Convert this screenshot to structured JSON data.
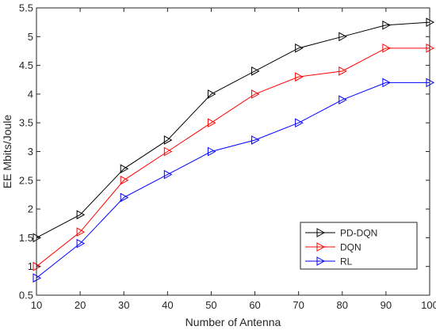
{
  "chart_data": {
    "type": "line",
    "title": "",
    "xlabel": "Number of Antenna",
    "ylabel": "EE Mbits/Joule",
    "x": [
      10,
      20,
      30,
      40,
      50,
      60,
      70,
      80,
      90,
      100
    ],
    "xlim": [
      10,
      100
    ],
    "ylim": [
      0.5,
      5.5
    ],
    "xticks": [
      "10",
      "20",
      "30",
      "40",
      "50",
      "60",
      "70",
      "80",
      "90",
      "100"
    ],
    "yticks": [
      "0.5",
      "1",
      "1.5",
      "2",
      "2.5",
      "3",
      "3.5",
      "4",
      "4.5",
      "5",
      "5.5"
    ],
    "grid": false,
    "legend_position": "lower-right",
    "marker": "right-pointing-triangle",
    "series": [
      {
        "name": "PD-DQN",
        "color": "#000000",
        "values": [
          1.5,
          1.9,
          2.7,
          3.2,
          4.0,
          4.4,
          4.8,
          5.0,
          5.2,
          5.25
        ]
      },
      {
        "name": "DQN",
        "color": "#ff0000",
        "values": [
          1.0,
          1.6,
          2.5,
          3.0,
          3.5,
          4.0,
          4.3,
          4.4,
          4.8,
          4.8
        ]
      },
      {
        "name": "RL",
        "color": "#0000ff",
        "values": [
          0.8,
          1.4,
          2.2,
          2.6,
          3.0,
          3.2,
          3.5,
          3.9,
          4.2,
          4.2
        ]
      }
    ]
  }
}
